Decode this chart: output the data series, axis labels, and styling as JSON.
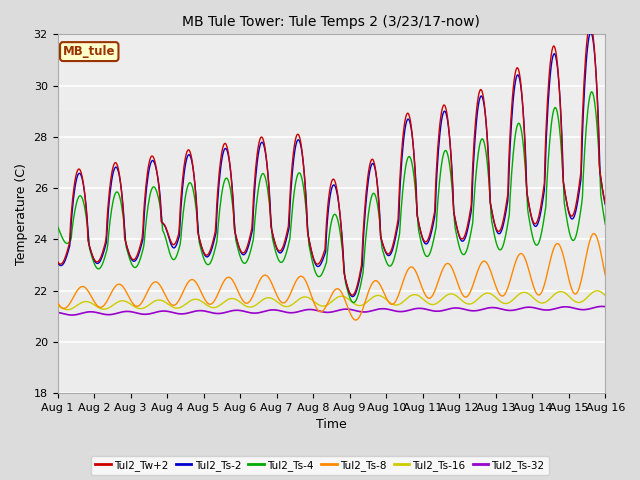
{
  "title": "MB Tule Tower: Tule Temps 2 (3/23/17-now)",
  "xlabel": "Time",
  "ylabel": "Temperature (C)",
  "ylim": [
    18,
    32
  ],
  "yticks": [
    18,
    20,
    22,
    24,
    26,
    28,
    30,
    32
  ],
  "xlim": [
    0,
    15
  ],
  "xtick_labels": [
    "Aug 1",
    "Aug 2",
    "Aug 3",
    "Aug 4",
    "Aug 5",
    "Aug 6",
    "Aug 7",
    "Aug 8",
    "Aug 9",
    "Aug 10",
    "Aug 11",
    "Aug 12",
    "Aug 13",
    "Aug 14",
    "Aug 15",
    "Aug 16"
  ],
  "bg_color": "#dcdcdc",
  "plot_bg_color": "#ebebeb",
  "grid_color": "white",
  "legend_label": "MB_tule",
  "series": {
    "Tul2_Tw+2": {
      "color": "#cc0000",
      "lw": 1.0
    },
    "Tul2_Ts-2": {
      "color": "#0000cc",
      "lw": 1.0
    },
    "Tul2_Ts-4": {
      "color": "#00aa00",
      "lw": 1.0
    },
    "Tul2_Ts-8": {
      "color": "#ff8800",
      "lw": 1.0
    },
    "Tul2_Ts-16": {
      "color": "#cccc00",
      "lw": 1.0
    },
    "Tul2_Ts-32": {
      "color": "#9900cc",
      "lw": 1.2
    }
  }
}
